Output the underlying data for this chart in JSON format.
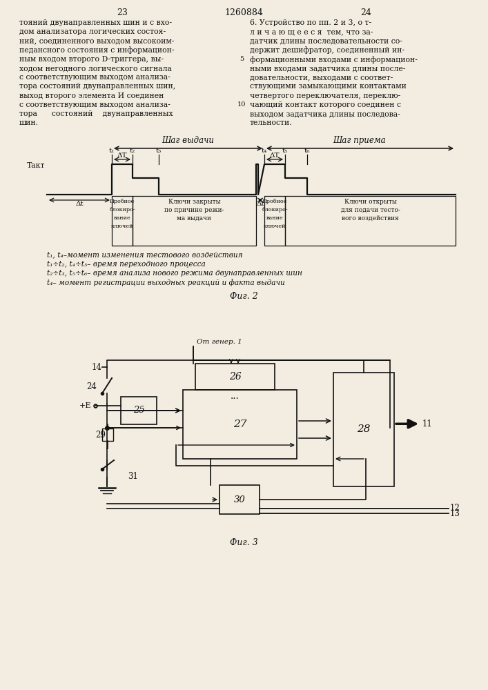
{
  "bg": "#f2ede0",
  "lc": "#111111",
  "tc": "#111111",
  "hdr_left": "23",
  "hdr_mid": "1260884",
  "hdr_right": "24",
  "left_col": [
    "тояний двунаправленных шин и с вхо-",
    "дом анализатора логических состоя-",
    "ний, соединенного выходом высокоим-",
    "педансного состояния с информацион-",
    "ным входом второго D-триггера, вы-",
    "ходом негодного логического сигнала",
    "с соответствующим выходом анализа-",
    "тора состояний двунаправленных шин,",
    "выход второго элемента И соединен",
    "с соответствующим выходом анализа-",
    "тора      состояний    двунаправленных",
    "шин."
  ],
  "right_col": [
    "6. Устройство по пп. 2 и 3, о т-",
    "л и ч а ю щ е е с я  тем, что за-",
    "датчик длины последовательности со-",
    "держит дешифратор, соединенный ин-",
    "формационными входами с информацион-",
    "ными входами задатчика длины после-",
    "довательности, выходами с соответ-",
    "ствующими замыкающими контактами",
    "четвертого переключателя, переклю-",
    "чающий контакт которого соединен с",
    "выходом задатчика длины последова-",
    "тельности."
  ],
  "shag_vydachi": "Шаг выдачи",
  "shag_priema": "Шаг приема",
  "takt": "Такт",
  "dt": "Δt",
  "dT": "ΔT",
  "t1": "t₁",
  "t2": "t₂",
  "t3": "t₃",
  "t4": "t₄",
  "t5": "t₅",
  "t6": "t₆",
  "box1": [
    "Пробное",
    "блокиро-",
    "вание",
    "ключей"
  ],
  "box2": [
    "Ключи закрыты",
    "по причине режи-",
    "ма выдачи"
  ],
  "box3": [
    "Пробное",
    "блокиро-",
    "вание",
    "ключей"
  ],
  "box4": [
    "Ключи открыты",
    "для подачи тесто-",
    "вого воздействия"
  ],
  "leg": [
    "t₁, t₄–момент изменения тестового воздействия",
    "t₁÷t₂, t₄÷t₅– время переходного процесса",
    "t₂÷t₃, t₅÷t₆– время анализа нового режима двунаправленных шин",
    "t₄– момент регистрации выходных реакций и факта выдачи"
  ],
  "fig2": "Фиг. 2",
  "fig3": "Фиг. 3",
  "gen_label": "От генер. 1"
}
